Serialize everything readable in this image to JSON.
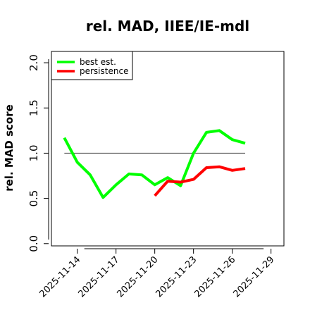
{
  "chart_data": {
    "type": "line",
    "title": "rel. MAD, IIEE/IE-mdl",
    "ylabel": "rel. MAD score",
    "xlabel": "",
    "xlim": [
      "2025-11-12",
      "2025-11-30"
    ],
    "ylim": [
      0.0,
      2.0
    ],
    "yticks": [
      0.0,
      0.5,
      1.0,
      1.5,
      2.0
    ],
    "ytick_labels": [
      "0.0",
      "0.5",
      "1.0",
      "1.5",
      "2.0"
    ],
    "xticks": [
      "2025-11-14",
      "2025-11-17",
      "2025-11-20",
      "2025-11-23",
      "2025-11-26",
      "2025-11-29"
    ],
    "grid": false,
    "legend_position": "top-left",
    "reference_line": {
      "y": 1.0,
      "x_start": "2025-11-13",
      "x_end": "2025-11-27",
      "color": "#555555"
    },
    "series": [
      {
        "name": "best est.",
        "color": "#00ff00",
        "x": [
          "2025-11-13",
          "2025-11-14",
          "2025-11-15",
          "2025-11-16",
          "2025-11-17",
          "2025-11-18",
          "2025-11-19",
          "2025-11-20",
          "2025-11-21",
          "2025-11-22",
          "2025-11-23",
          "2025-11-24",
          "2025-11-25",
          "2025-11-26",
          "2025-11-27"
        ],
        "values": [
          1.17,
          0.9,
          0.76,
          0.51,
          0.65,
          0.77,
          0.76,
          0.65,
          0.73,
          0.64,
          1.0,
          1.23,
          1.25,
          1.15,
          1.11
        ]
      },
      {
        "name": "persistence",
        "color": "#ff0000",
        "x": [
          "2025-11-20",
          "2025-11-21",
          "2025-11-22",
          "2025-11-23",
          "2025-11-24",
          "2025-11-25",
          "2025-11-26",
          "2025-11-27"
        ],
        "values": [
          0.53,
          0.69,
          0.68,
          0.71,
          0.84,
          0.85,
          0.81,
          0.83
        ]
      }
    ]
  }
}
